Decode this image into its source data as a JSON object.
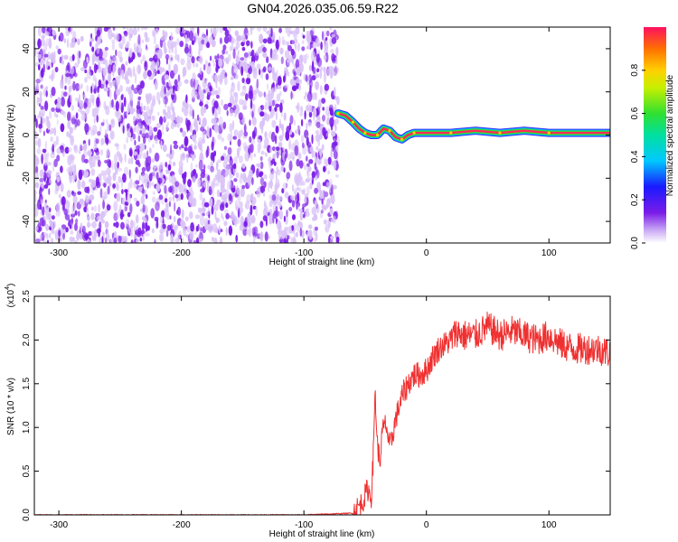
{
  "figure_title": "GN04.2026.035.06.59.R22",
  "colors": {
    "spectrogram_noise": "#7b1ce8",
    "spectrogram_noise_light": "#d9c2f7",
    "snr_line": "#f03030",
    "axis": "#000000"
  },
  "chart_data": [
    {
      "type": "heatmap",
      "title": "GN04.2026.035.06.59.R22",
      "xlabel": "Height of straight line (km)",
      "ylabel": "Frequency (Hz)",
      "xlim": [
        -320,
        150
      ],
      "ylim": [
        -50,
        50
      ],
      "xticks": [
        -300,
        -200,
        -100,
        0,
        100
      ],
      "yticks": [
        -40,
        -20,
        0,
        20,
        40
      ],
      "noise_region_x": [
        -320,
        -72
      ],
      "signal_track": {
        "x": [
          -72,
          -66,
          -60,
          -55,
          -50,
          -45,
          -40,
          -35,
          -30,
          -25,
          -20,
          -15,
          -10,
          0,
          20,
          40,
          60,
          80,
          100,
          120,
          150
        ],
        "frequency": [
          10,
          9,
          6,
          3,
          1,
          0,
          0,
          3,
          2,
          -1,
          -2,
          0,
          1,
          1,
          1,
          2,
          1,
          2,
          1,
          1,
          1
        ]
      },
      "colorbar": {
        "label": "Normalized spectral amplitude",
        "range": [
          0.0,
          1.0
        ],
        "ticks": [
          "0.0",
          "0.2",
          "0.4",
          "0.6",
          "0.8"
        ]
      },
      "grid": false
    },
    {
      "type": "line",
      "xlabel": "Height of straight line (km)",
      "ylabel": "SNR (10 * v/v)",
      "y_multiplier": "(x10",
      "y_multiplier_exp": "4",
      "y_multiplier_close": ")",
      "xlim": [
        -320,
        150
      ],
      "ylim": [
        0.0,
        2.5
      ],
      "xticks": [
        -300,
        -200,
        -100,
        0,
        100
      ],
      "yticks": [
        "0.0",
        "0.5",
        "1.0",
        "1.5",
        "2.0",
        "2.5"
      ],
      "series": [
        {
          "x": [
            -320,
            -100,
            -60,
            -52,
            -48,
            -45,
            -43,
            -42,
            -40,
            -38,
            -36,
            -33,
            -30,
            -25,
            -20,
            -15,
            -10,
            -5,
            0,
            5,
            10,
            15,
            20,
            25,
            30,
            40,
            50,
            60,
            70,
            80,
            90,
            100,
            110,
            120,
            130,
            140,
            150
          ],
          "y": [
            0.0,
            0.0,
            0.02,
            0.15,
            0.3,
            0.2,
            0.8,
            1.45,
            0.8,
            0.6,
            0.95,
            1.05,
            0.75,
            1.1,
            1.35,
            1.5,
            1.6,
            1.6,
            1.65,
            1.8,
            1.9,
            1.95,
            2.0,
            2.1,
            2.05,
            2.05,
            2.15,
            2.05,
            2.1,
            2.05,
            2.0,
            2.05,
            1.95,
            1.9,
            1.9,
            1.9,
            1.85
          ]
        }
      ],
      "noise_amplitude": 0.15,
      "grid": false
    }
  ]
}
